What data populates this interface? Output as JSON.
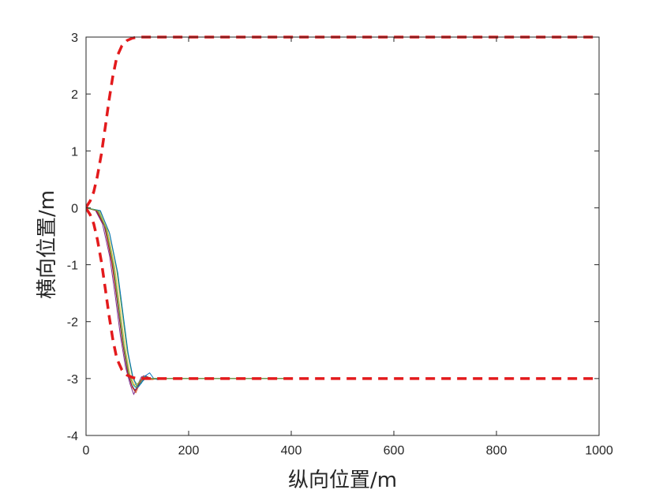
{
  "chart_data": {
    "type": "line",
    "title": "",
    "xlabel": "纵向位置/m",
    "ylabel": "横向位置/m",
    "xlim": [
      0,
      1000
    ],
    "ylim": [
      -4,
      3
    ],
    "grid": false,
    "x_ticks": [
      "0",
      "200",
      "400",
      "600",
      "800",
      "1000"
    ],
    "y_ticks": [
      "3",
      "2",
      "1",
      "0",
      "-1",
      "-2",
      "-3",
      "-4"
    ],
    "boundary_color": "#e31a1c",
    "series": [
      {
        "style": "dashed",
        "color": "#e31a1c",
        "x": [
          0,
          3,
          8,
          15,
          22,
          30,
          38,
          45,
          52,
          60,
          70,
          80,
          90,
          100,
          110,
          120,
          1000
        ],
        "y": [
          0,
          0.05,
          0.12,
          0.28,
          0.55,
          0.95,
          1.45,
          1.9,
          2.3,
          2.65,
          2.85,
          2.94,
          2.98,
          3.0,
          3.0,
          3.0,
          3.0
        ]
      },
      {
        "style": "dashed",
        "color": "#e31a1c",
        "x": [
          0,
          3,
          8,
          15,
          22,
          30,
          38,
          45,
          52,
          60,
          70,
          80,
          90,
          100,
          110,
          120,
          1000
        ],
        "y": [
          0,
          -0.05,
          -0.12,
          -0.28,
          -0.55,
          -0.95,
          -1.45,
          -1.9,
          -2.3,
          -2.65,
          -2.85,
          -2.94,
          -2.98,
          -3.0,
          -3.0,
          -3.0,
          -3.0
        ]
      },
      {
        "style": "solid",
        "color": "#0072bd",
        "x": [
          0,
          20,
          35,
          50,
          60,
          70,
          80,
          88,
          95,
          102,
          110,
          118,
          125,
          135,
          400
        ],
        "y": [
          0,
          -0.05,
          -0.3,
          -0.9,
          -1.6,
          -2.3,
          -2.85,
          -3.1,
          -3.2,
          -3.15,
          -3.05,
          -2.98,
          -3.0,
          -3.0,
          -3.0
        ]
      },
      {
        "style": "solid",
        "color": "#d95319",
        "x": [
          0,
          22,
          38,
          52,
          62,
          72,
          82,
          90,
          97,
          104,
          112,
          120,
          128,
          140,
          400
        ],
        "y": [
          0,
          -0.05,
          -0.35,
          -1.0,
          -1.7,
          -2.4,
          -2.9,
          -3.15,
          -3.25,
          -3.1,
          -2.95,
          -2.97,
          -3.02,
          -3.0,
          -3.0
        ]
      },
      {
        "style": "solid",
        "color": "#edb120",
        "x": [
          0,
          25,
          42,
          56,
          66,
          76,
          86,
          94,
          101,
          108,
          116,
          124,
          132,
          145,
          400
        ],
        "y": [
          0,
          -0.05,
          -0.4,
          -1.05,
          -1.75,
          -2.45,
          -2.95,
          -3.1,
          -3.12,
          -3.05,
          -2.96,
          -3.0,
          -3.0,
          -3.0,
          -3.0
        ]
      },
      {
        "style": "solid",
        "color": "#7e2f8e",
        "x": [
          0,
          18,
          32,
          46,
          57,
          67,
          77,
          86,
          93,
          100,
          108,
          116,
          124,
          135,
          400
        ],
        "y": [
          0,
          -0.04,
          -0.28,
          -0.85,
          -1.55,
          -2.25,
          -2.8,
          -3.1,
          -3.28,
          -3.12,
          -2.97,
          -2.95,
          -3.0,
          -3.0,
          -3.0
        ]
      },
      {
        "style": "solid",
        "color": "#77ac30",
        "x": [
          0,
          27,
          45,
          60,
          70,
          80,
          90,
          97,
          104,
          112,
          120,
          128,
          136,
          150,
          400
        ],
        "y": [
          0,
          -0.05,
          -0.42,
          -1.1,
          -1.8,
          -2.5,
          -2.95,
          -3.08,
          -3.1,
          -3.02,
          -2.97,
          -3.0,
          -3.0,
          -3.0,
          -3.0
        ]
      },
      {
        "style": "solid",
        "color": "#4dbeee",
        "x": [
          0,
          24,
          40,
          54,
          64,
          74,
          84,
          92,
          99,
          106,
          114,
          122,
          130,
          142,
          400
        ],
        "y": [
          0,
          -0.05,
          -0.38,
          -1.02,
          -1.72,
          -2.42,
          -2.92,
          -3.12,
          -3.18,
          -3.06,
          -2.96,
          -2.99,
          -3.0,
          -3.0,
          -3.0
        ]
      },
      {
        "style": "solid",
        "color": "#a2142f",
        "x": [
          0,
          20,
          36,
          50,
          61,
          71,
          81,
          89,
          96,
          103,
          111,
          119,
          127,
          138,
          400
        ],
        "y": [
          0,
          -0.05,
          -0.32,
          -0.95,
          -1.65,
          -2.35,
          -2.88,
          -3.12,
          -3.22,
          -3.1,
          -2.98,
          -2.97,
          -3.0,
          -3.0,
          -3.0
        ]
      },
      {
        "style": "solid",
        "color": "#0072bd",
        "x": [
          0,
          28,
          46,
          62,
          72,
          82,
          92,
          100,
          108,
          116,
          124,
          132,
          140,
          152,
          400
        ],
        "y": [
          0,
          -0.05,
          -0.45,
          -1.15,
          -1.85,
          -2.55,
          -3.0,
          -3.15,
          -3.08,
          -2.95,
          -2.9,
          -3.0,
          -3.02,
          -3.0,
          -3.0
        ]
      },
      {
        "style": "solid",
        "color": "#77ac30",
        "x": [
          0,
          23,
          39,
          53,
          63,
          73,
          83,
          91,
          98,
          105,
          113,
          121,
          129,
          141,
          400
        ],
        "y": [
          0,
          -0.05,
          -0.36,
          -1.0,
          -1.7,
          -2.4,
          -2.9,
          -3.1,
          -3.15,
          -3.04,
          -2.97,
          -3.0,
          -3.0,
          -3.0,
          -3.0
        ]
      }
    ]
  }
}
